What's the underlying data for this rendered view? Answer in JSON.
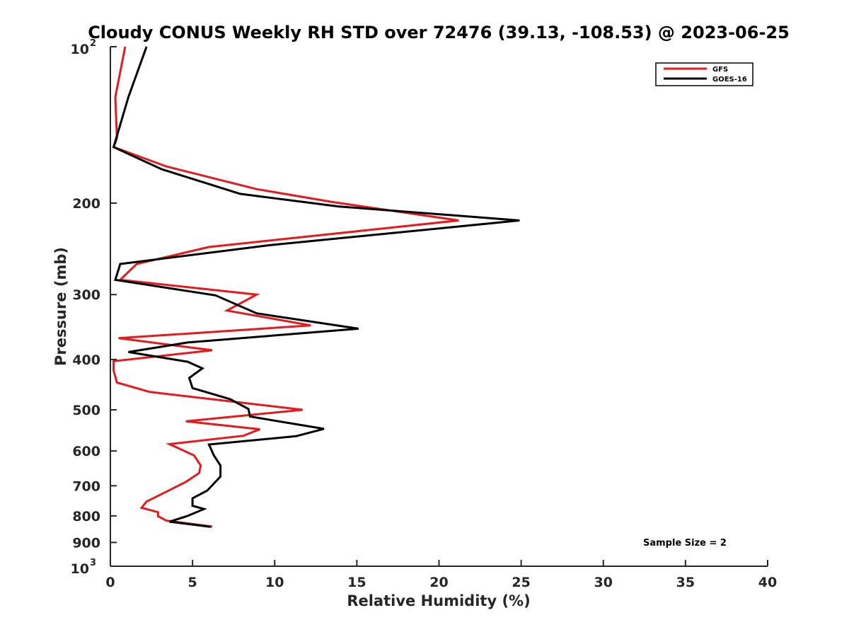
{
  "chart_data": {
    "type": "line",
    "title": "Cloudy CONUS Weekly RH STD over 72476 (39.13, -108.53) @ 2023-06-25",
    "xlabel": "Relative Humidity (%)",
    "ylabel": "Pressure (mb)",
    "xlim": [
      0,
      40
    ],
    "ylim": [
      100,
      1000
    ],
    "y_scale": "log",
    "y_reversed": true,
    "x_ticks": [
      "0",
      "5",
      "10",
      "15",
      "20",
      "25",
      "30",
      "35",
      "40"
    ],
    "y_ticks": [
      {
        "value": 100,
        "base": "10",
        "exp": "2"
      },
      {
        "value": 200,
        "label": "200"
      },
      {
        "value": 300,
        "label": "300"
      },
      {
        "value": 400,
        "label": "400"
      },
      {
        "value": 500,
        "label": "500"
      },
      {
        "value": 600,
        "label": "600"
      },
      {
        "value": 700,
        "label": "700"
      },
      {
        "value": 800,
        "label": "800"
      },
      {
        "value": 900,
        "label": "900"
      },
      {
        "value": 1000,
        "base": "10",
        "exp": "3"
      }
    ],
    "grid": false,
    "legend_position": "top-right",
    "annotation": "Sample Size = 2",
    "series": [
      {
        "name": "GFS",
        "color": "#e41a1c",
        "points": [
          [
            0.9,
            100
          ],
          [
            0.3,
            125
          ],
          [
            0.4,
            150
          ],
          [
            0.2,
            156
          ],
          [
            3.4,
            170
          ],
          [
            8.9,
            188
          ],
          [
            13.5,
            199
          ],
          [
            21.2,
            216
          ],
          [
            6.0,
            243
          ],
          [
            1.6,
            262
          ],
          [
            0.6,
            281
          ],
          [
            8.9,
            300
          ],
          [
            7.1,
            322
          ],
          [
            12.2,
            344
          ],
          [
            0.5,
            364
          ],
          [
            6.2,
            384
          ],
          [
            0.2,
            403
          ],
          [
            0.2,
            420
          ],
          [
            0.4,
            443
          ],
          [
            2.4,
            462
          ],
          [
            11.7,
            500
          ],
          [
            4.6,
            526
          ],
          [
            9.1,
            545
          ],
          [
            8.1,
            561
          ],
          [
            3.6,
            582
          ],
          [
            5.1,
            612
          ],
          [
            5.5,
            640
          ],
          [
            5.4,
            662
          ],
          [
            4.6,
            688
          ],
          [
            3.4,
            719
          ],
          [
            2.2,
            751
          ],
          [
            1.9,
            772
          ],
          [
            2.9,
            787
          ],
          [
            2.9,
            801
          ],
          [
            3.4,
            817
          ],
          [
            6.2,
            839
          ]
        ]
      },
      {
        "name": "GOES-16",
        "color": "#000000",
        "points": [
          [
            2.2,
            100
          ],
          [
            1.1,
            125
          ],
          [
            0.2,
            156
          ],
          [
            3.1,
            172
          ],
          [
            7.9,
            192
          ],
          [
            13.9,
            203
          ],
          [
            24.9,
            216
          ],
          [
            9.7,
            241
          ],
          [
            0.6,
            262
          ],
          [
            0.3,
            281
          ],
          [
            6.4,
            301
          ],
          [
            8.9,
            326
          ],
          [
            15.1,
            349
          ],
          [
            4.7,
            371
          ],
          [
            1.1,
            387
          ],
          [
            4.7,
            404
          ],
          [
            5.6,
            416
          ],
          [
            4.8,
            434
          ],
          [
            5.0,
            454
          ],
          [
            7.3,
            477
          ],
          [
            8.4,
            498
          ],
          [
            8.5,
            515
          ],
          [
            13.0,
            544
          ],
          [
            11.3,
            562
          ],
          [
            6.0,
            583
          ],
          [
            6.3,
            612
          ],
          [
            6.7,
            640
          ],
          [
            6.7,
            672
          ],
          [
            5.9,
            715
          ],
          [
            5.0,
            740
          ],
          [
            5.0,
            765
          ],
          [
            5.7,
            776
          ],
          [
            4.7,
            800
          ],
          [
            3.6,
            821
          ],
          [
            6.1,
            840
          ]
        ]
      }
    ]
  }
}
